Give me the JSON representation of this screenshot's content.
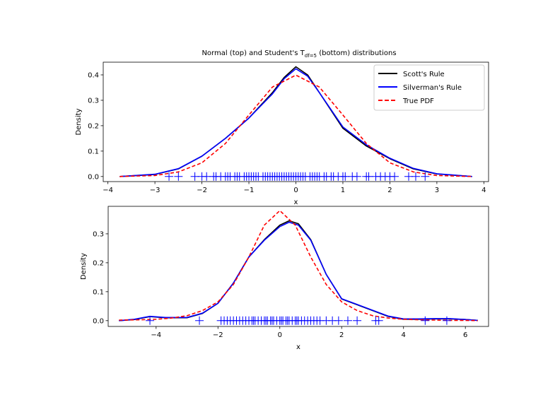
{
  "figure": {
    "title_prefix": "Normal (top) and Student's T",
    "title_subscript": "df=5",
    "title_suffix": " (bottom) distributions"
  },
  "legend": [
    {
      "label": "Scott's Rule",
      "color": "#000000",
      "dash": "solid"
    },
    {
      "label": "Silverman's Rule",
      "color": "#0000ff",
      "dash": "solid"
    },
    {
      "label": "True PDF",
      "color": "#ff0000",
      "dash": "dashed"
    }
  ],
  "chart_data": [
    {
      "type": "line",
      "xlabel": "x",
      "ylabel": "Density",
      "xlim": [
        -4.1,
        4.1
      ],
      "ylim": [
        -0.02,
        0.45
      ],
      "xticks": [
        -4,
        -3,
        -2,
        -1,
        0,
        1,
        2,
        3,
        4
      ],
      "yticks": [
        0.0,
        0.1,
        0.2,
        0.3,
        0.4
      ],
      "series": [
        {
          "name": "Scott's Rule",
          "color": "#000000",
          "dash": "solid",
          "x": [
            -3.75,
            -3.0,
            -2.5,
            -2.0,
            -1.5,
            -1.0,
            -0.5,
            -0.25,
            0.0,
            0.25,
            0.5,
            1.0,
            1.5,
            2.0,
            2.5,
            3.0,
            3.75
          ],
          "y": [
            0.0,
            0.008,
            0.03,
            0.08,
            0.15,
            0.23,
            0.33,
            0.39,
            0.432,
            0.4,
            0.33,
            0.19,
            0.12,
            0.07,
            0.03,
            0.01,
            0.0
          ]
        },
        {
          "name": "Silverman's Rule",
          "color": "#0000ff",
          "dash": "solid",
          "x": [
            -3.75,
            -3.0,
            -2.5,
            -2.0,
            -1.5,
            -1.0,
            -0.5,
            -0.25,
            0.0,
            0.25,
            0.5,
            1.0,
            1.5,
            2.0,
            2.5,
            3.0,
            3.75
          ],
          "y": [
            0.0,
            0.009,
            0.031,
            0.08,
            0.15,
            0.23,
            0.325,
            0.385,
            0.424,
            0.395,
            0.33,
            0.195,
            0.125,
            0.072,
            0.032,
            0.011,
            0.0
          ]
        },
        {
          "name": "True PDF",
          "color": "#ff0000",
          "dash": "dashed",
          "x": [
            -3.75,
            -3.0,
            -2.5,
            -2.0,
            -1.5,
            -1.0,
            -0.5,
            0.0,
            0.5,
            1.0,
            1.5,
            2.0,
            2.5,
            3.0,
            3.75
          ],
          "y": [
            0.0,
            0.004,
            0.018,
            0.054,
            0.13,
            0.242,
            0.352,
            0.399,
            0.352,
            0.242,
            0.13,
            0.054,
            0.018,
            0.004,
            0.0
          ]
        }
      ],
      "rug": [
        -2.7,
        -2.5,
        -2.15,
        -2.0,
        -1.9,
        -1.75,
        -1.7,
        -1.6,
        -1.5,
        -1.45,
        -1.4,
        -1.3,
        -1.25,
        -1.2,
        -1.1,
        -1.05,
        -1.0,
        -0.95,
        -0.9,
        -0.85,
        -0.8,
        -0.7,
        -0.65,
        -0.6,
        -0.55,
        -0.5,
        -0.45,
        -0.4,
        -0.35,
        -0.3,
        -0.25,
        -0.2,
        -0.15,
        -0.1,
        -0.05,
        0.0,
        0.05,
        0.1,
        0.15,
        0.2,
        0.3,
        0.35,
        0.4,
        0.45,
        0.5,
        0.6,
        0.65,
        0.75,
        0.8,
        0.9,
        1.0,
        1.05,
        1.2,
        1.3,
        1.5,
        1.55,
        1.7,
        1.8,
        1.9,
        2.0,
        2.1,
        2.4,
        2.55,
        2.75
      ]
    },
    {
      "type": "line",
      "xlabel": "x",
      "ylabel": "Density",
      "xlim": [
        -5.55,
        6.75
      ],
      "ylim": [
        -0.02,
        0.395
      ],
      "xticks": [
        -4,
        -2,
        0,
        2,
        4,
        6
      ],
      "yticks": [
        0.0,
        0.1,
        0.2,
        0.3
      ],
      "series": [
        {
          "name": "Scott's Rule",
          "color": "#000000",
          "dash": "solid",
          "x": [
            -5.2,
            -4.7,
            -4.2,
            -3.7,
            -3.0,
            -2.5,
            -2.0,
            -1.5,
            -1.0,
            -0.5,
            0.0,
            0.3,
            0.6,
            1.0,
            1.5,
            2.0,
            2.5,
            3.0,
            3.5,
            4.0,
            4.5,
            5.0,
            5.5,
            6.0,
            6.4
          ],
          "y": [
            0.0,
            0.004,
            0.014,
            0.01,
            0.01,
            0.025,
            0.06,
            0.13,
            0.22,
            0.28,
            0.33,
            0.345,
            0.335,
            0.28,
            0.16,
            0.075,
            0.055,
            0.035,
            0.015,
            0.005,
            0.005,
            0.006,
            0.006,
            0.004,
            0.001
          ]
        },
        {
          "name": "Silverman's Rule",
          "color": "#0000ff",
          "dash": "solid",
          "x": [
            -5.2,
            -4.7,
            -4.2,
            -3.7,
            -3.0,
            -2.5,
            -2.0,
            -1.5,
            -1.0,
            -0.5,
            0.0,
            0.3,
            0.6,
            1.0,
            1.5,
            2.0,
            2.5,
            3.0,
            3.5,
            4.0,
            4.5,
            5.0,
            5.5,
            6.0,
            6.4
          ],
          "y": [
            0.0,
            0.005,
            0.015,
            0.011,
            0.011,
            0.026,
            0.06,
            0.13,
            0.22,
            0.278,
            0.325,
            0.34,
            0.33,
            0.278,
            0.16,
            0.076,
            0.056,
            0.036,
            0.016,
            0.006,
            0.006,
            0.007,
            0.007,
            0.004,
            0.001
          ]
        },
        {
          "name": "True PDF",
          "color": "#ff0000",
          "dash": "dashed",
          "x": [
            -5.2,
            -4.5,
            -4.0,
            -3.5,
            -3.0,
            -2.5,
            -2.0,
            -1.5,
            -1.0,
            -0.5,
            0.0,
            0.5,
            1.0,
            1.5,
            2.0,
            2.5,
            3.0,
            3.5,
            4.0,
            4.5,
            5.0,
            5.5,
            6.0,
            6.4
          ],
          "y": [
            0.002,
            0.003,
            0.005,
            0.009,
            0.017,
            0.035,
            0.065,
            0.125,
            0.22,
            0.33,
            0.38,
            0.33,
            0.22,
            0.125,
            0.065,
            0.035,
            0.017,
            0.009,
            0.005,
            0.003,
            0.002,
            0.001,
            0.001,
            0.0
          ]
        }
      ],
      "rug": [
        -4.2,
        -2.6,
        -1.9,
        -1.8,
        -1.7,
        -1.6,
        -1.5,
        -1.4,
        -1.3,
        -1.2,
        -1.1,
        -1.0,
        -0.9,
        -0.85,
        -0.8,
        -0.7,
        -0.6,
        -0.5,
        -0.45,
        -0.4,
        -0.3,
        -0.25,
        -0.2,
        -0.1,
        0.0,
        0.05,
        0.1,
        0.2,
        0.25,
        0.3,
        0.4,
        0.5,
        0.55,
        0.6,
        0.7,
        0.8,
        0.9,
        1.0,
        1.1,
        1.2,
        1.3,
        1.5,
        1.7,
        1.9,
        2.2,
        2.5,
        3.1,
        3.2,
        4.7,
        5.4
      ]
    }
  ]
}
